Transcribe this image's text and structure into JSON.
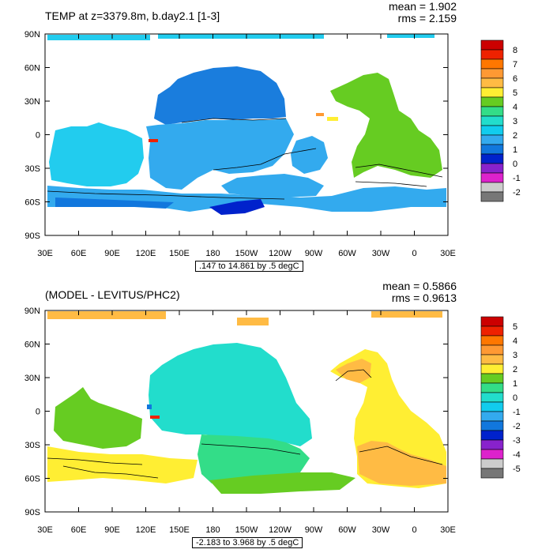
{
  "maps": [
    {
      "title": "TEMP at z=3379.8m, b.day2.1 [1-3]",
      "mean_label": "mean = 1.902",
      "rms_label": "rms = 2.159",
      "range_label": ".147 to 14.861 by .5 degC",
      "colorbar": {
        "labels": [
          "8",
          "7",
          "6",
          "5",
          "4",
          "3",
          "2",
          "1",
          "0",
          "-1",
          "-2"
        ],
        "colors": [
          "#cc0000",
          "#ee2200",
          "#ff7700",
          "#ff9933",
          "#ffbb44",
          "#ffee33",
          "#66cc22",
          "#33dd88",
          "#22ddcc",
          "#11ccee",
          "#33aaee",
          "#1177dd",
          "#0022cc",
          "#8822cc",
          "#dd22cc",
          "#cccccc",
          "#777777"
        ]
      }
    },
    {
      "title": "(MODEL - LEVITUS/PHC2)",
      "mean_label": "mean = 0.5866",
      "rms_label": "rms = 0.9613",
      "range_label": "-2.183 to 3.968 by .5 degC",
      "colorbar": {
        "labels": [
          "5",
          "4",
          "3",
          "2",
          "1",
          "0",
          "-1",
          "-2",
          "-3",
          "-4",
          "-5"
        ],
        "colors": [
          "#cc0000",
          "#ee2200",
          "#ff7700",
          "#ff9933",
          "#ffbb44",
          "#ffee33",
          "#66cc22",
          "#33dd88",
          "#22ddcc",
          "#11ccee",
          "#33aaee",
          "#1177dd",
          "#0022cc",
          "#8822cc",
          "#dd22cc",
          "#cccccc",
          "#777777"
        ]
      }
    }
  ],
  "axes": {
    "lat_labels": [
      "90N",
      "60N",
      "30N",
      "0",
      "30S",
      "60S",
      "90S"
    ],
    "lon_labels": [
      "30E",
      "60E",
      "90E",
      "120E",
      "150E",
      "180",
      "150W",
      "120W",
      "90W",
      "60W",
      "30W",
      "0",
      "30E"
    ]
  },
  "fill_colors": {
    "top": {
      "north_pacific": "#1a7ddd",
      "pacific_south": "#33aaee",
      "indian": "#22ccee",
      "southern": "#33aaee",
      "southern_deep": "#1177dd",
      "antarctic": "#0022cc",
      "atlantic": "#66cc22",
      "arctic": "#22ccee",
      "red_spot": "#ee2200",
      "orange_spot": "#ff9933",
      "yellow_spot": "#ffee33"
    },
    "bottom": {
      "pacific": "#22ddcc",
      "pacific_south": "#33dd88",
      "indian": "#66cc22",
      "southern_indian": "#ffee33",
      "southern": "#66cc22",
      "atlantic": "#ffee33",
      "atlantic_warm": "#ffbb44",
      "arctic": "#ffbb44",
      "blue_spot": "#1177dd",
      "red_spot": "#ee2200"
    }
  }
}
